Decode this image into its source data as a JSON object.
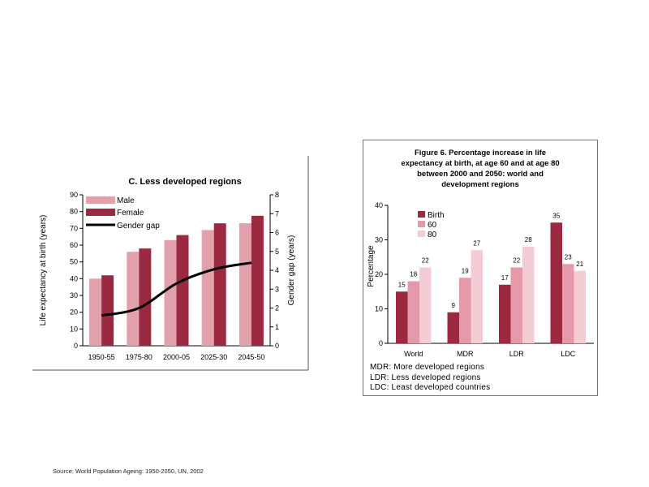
{
  "colors": {
    "male": "#e2a0aa",
    "female": "#9b2a41",
    "gap_line": "#000000",
    "birth": "#9b2a41",
    "age60": "#e49aa8",
    "age80": "#f4ccd4"
  },
  "chart_data": [
    {
      "type": "bar",
      "title": "C. Less developed regions",
      "categories": [
        "1950-55",
        "1975-80",
        "2000-05",
        "2025-30",
        "2045-50"
      ],
      "series": [
        {
          "name": "Male",
          "values": [
            40,
            56,
            63,
            69,
            73
          ]
        },
        {
          "name": "Female",
          "values": [
            42,
            58,
            66,
            73,
            77.5
          ]
        }
      ],
      "line_series": {
        "name": "Gender gap",
        "values": [
          1.6,
          2.0,
          3.3,
          4.05,
          4.4
        ],
        "axis": "right"
      },
      "ylabel": "Life expectancy at birth (years)",
      "y2label": "Gender gap (years)",
      "ylim": [
        0,
        90
      ],
      "y2lim": [
        0,
        8
      ],
      "yticks": [
        0,
        10,
        20,
        30,
        40,
        50,
        60,
        70,
        80,
        90
      ],
      "y2ticks": [
        0,
        1,
        2,
        3,
        4,
        5,
        6,
        7,
        8
      ],
      "legend": "top-left",
      "grid": false
    },
    {
      "type": "bar",
      "title_lines": [
        "Figure 6.  Percentage increase in life",
        "expectancy at birth, at age 60 and at age 80",
        "between 2000 and 2050: world and",
        "development regions"
      ],
      "categories": [
        "World",
        "MDR",
        "LDR",
        "LDC"
      ],
      "series": [
        {
          "name": "Birth",
          "values": [
            15,
            9,
            17,
            35
          ]
        },
        {
          "name": "60",
          "values": [
            18,
            19,
            22,
            23
          ]
        },
        {
          "name": "80",
          "values": [
            22,
            27,
            28,
            21
          ]
        }
      ],
      "data_labels": [
        [
          "15",
          "9",
          "17",
          "35"
        ],
        [
          "18",
          "19",
          "22",
          "23"
        ],
        [
          "22",
          "27",
          "28",
          "21"
        ]
      ],
      "ylabel": "Percentage",
      "ylim": [
        0,
        40
      ],
      "yticks": [
        0,
        10,
        20,
        30,
        40
      ],
      "legend": "top-left",
      "grid": false,
      "notes": [
        "MDR: More developed regions",
        "LDR: Less developed regions",
        "LDC: Least developed countries"
      ]
    }
  ],
  "source_text": "Source: World Population Ageing: 1950-2050, UN, 2002"
}
